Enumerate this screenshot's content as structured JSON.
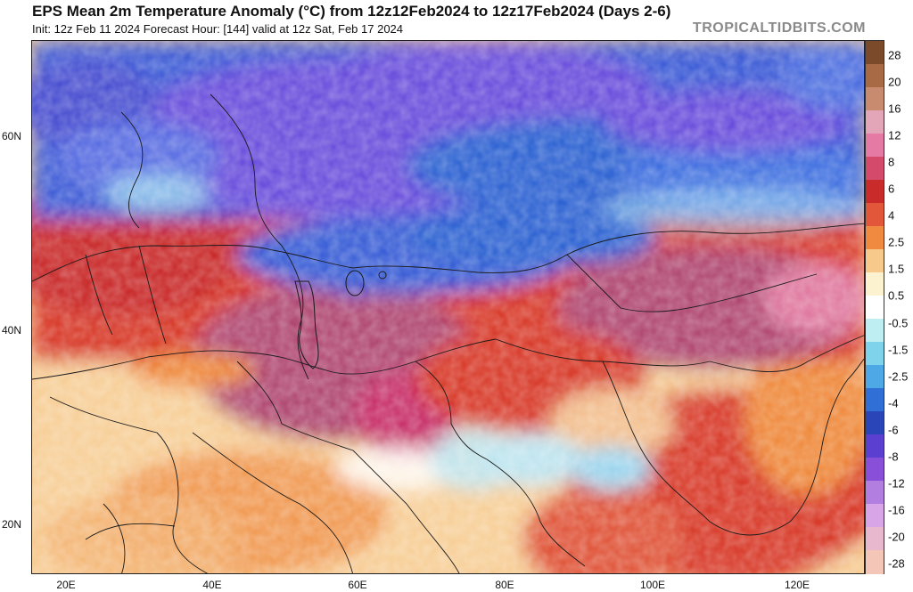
{
  "header": {
    "title": "EPS Mean 2m Temperature Anomaly (°C) from 12z12Feb2024 to 12z17Feb2024 (Days 2-6)",
    "subtitle": "Init: 12z Feb 11 2024   Forecast Hour: [144]   valid at 12z Sat, Feb 17 2024",
    "watermark": "TROPICALTIDBITS.COM"
  },
  "axes": {
    "lat_labels": [
      "60N",
      "40N",
      "20N"
    ],
    "lon_labels": [
      "20E",
      "40E",
      "60E",
      "80E",
      "100E",
      "120E"
    ]
  },
  "colorbar": {
    "labels": [
      "28",
      "20",
      "16",
      "12",
      "8",
      "6",
      "4",
      "2.5",
      "1.5",
      "0.5",
      "-0.5",
      "-1.5",
      "-2.5",
      "-4",
      "-6",
      "-8",
      "-12",
      "-16",
      "-20",
      "-28"
    ],
    "colors": [
      "#7a4a2a",
      "#a86a44",
      "#c98b6f",
      "#e3a6b8",
      "#e57aa4",
      "#d44a6a",
      "#c92a2a",
      "#e2563a",
      "#f08a40",
      "#f7c98a",
      "#fdf2cf",
      "#ffffff",
      "#bfeef2",
      "#7fd3ea",
      "#4fa8e6",
      "#2f6fd6",
      "#2a45b8",
      "#5a3fd0",
      "#8a4fd8",
      "#b27ee0",
      "#d8a6e6",
      "#e8b8cf",
      "#f4c6b8"
    ]
  },
  "map": {
    "region": "Europe / Middle East / Asia",
    "colors": {
      "cold_core": "#6a4fdc",
      "cold": "#3d5bd6",
      "cool_blue": "#2f63d2",
      "light_blue": "#9fd6ee",
      "warm_yellow": "#f9dd9a",
      "orange": "#ef8a3e",
      "red": "#d83a2a",
      "deep_red": "#b8283a",
      "magenta": "#b04a72",
      "pink": "#e07aa0",
      "border": "#1a1a1a"
    }
  }
}
